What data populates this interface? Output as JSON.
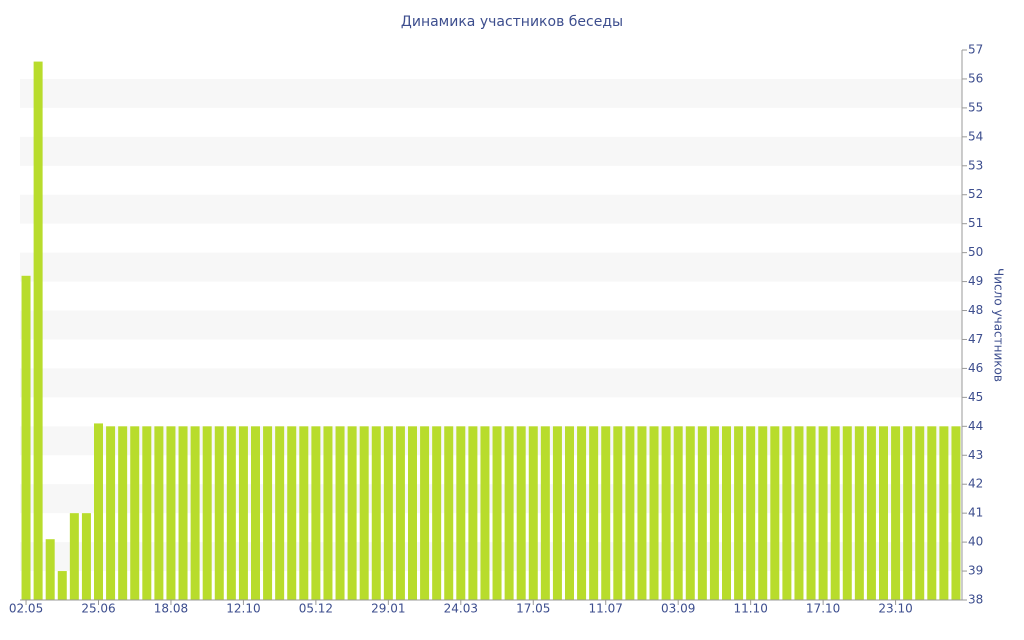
{
  "chart_data": {
    "type": "bar",
    "title": "Динамика участников беседы",
    "y_axis_label": "Число участников",
    "categories": [
      "02.05",
      null,
      null,
      null,
      null,
      null,
      "25.06",
      null,
      null,
      null,
      null,
      null,
      "18.08",
      null,
      null,
      null,
      null,
      null,
      "12.10",
      null,
      null,
      null,
      null,
      null,
      "05.12",
      null,
      null,
      null,
      null,
      null,
      "29.01",
      null,
      null,
      null,
      null,
      null,
      "24.03",
      null,
      null,
      null,
      null,
      null,
      "17.05",
      null,
      null,
      null,
      null,
      null,
      "11.07",
      null,
      null,
      null,
      null,
      null,
      "03.09",
      null,
      null,
      null,
      null,
      null,
      "11.10",
      null,
      null,
      null,
      null,
      null,
      "17.10",
      null,
      null,
      null,
      null,
      null,
      "23.10",
      null,
      null,
      null,
      null,
      null
    ],
    "values": [
      49.2,
      56.6,
      40.1,
      39,
      41,
      41,
      44.1,
      44,
      44,
      44,
      44,
      44,
      44,
      44,
      44,
      44,
      44,
      44,
      44,
      44,
      44,
      44,
      44,
      44,
      44,
      44,
      44,
      44,
      44,
      44,
      44,
      44,
      44,
      44,
      44,
      44,
      44,
      44,
      44,
      44,
      44,
      44,
      44,
      44,
      44,
      44,
      44,
      44,
      44,
      44,
      44,
      44,
      44,
      44,
      44,
      44,
      44,
      44,
      44,
      44,
      44,
      44,
      44,
      44,
      44,
      44,
      44,
      44,
      44,
      44,
      44,
      44,
      44,
      44,
      44,
      44,
      44,
      44
    ],
    "color": "#b8dc2c",
    "ylim": [
      38,
      57
    ],
    "yticks": [
      38,
      39,
      40,
      41,
      42,
      43,
      44,
      45,
      46,
      47,
      48,
      49,
      50,
      51,
      52,
      53,
      54,
      55,
      56,
      57
    ],
    "grid": true
  }
}
